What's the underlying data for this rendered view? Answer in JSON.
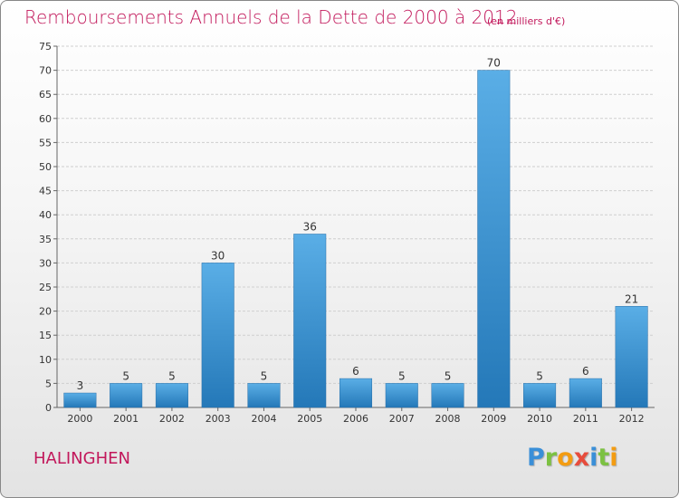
{
  "header": {
    "title": "Remboursements Annuels de la Dette de 2000 à 2012",
    "subtitle": "(en milliers d'€)"
  },
  "footer": {
    "commune": "HALINGHEN",
    "logo_letters": [
      "P",
      "r",
      "o",
      "x",
      "i",
      "t",
      "i"
    ]
  },
  "colors": {
    "title": "#c2185b",
    "bar_top": "#5aaee6",
    "bar_bottom": "#2478b8",
    "grid": "#cfcfcf",
    "logo": [
      "#3a8fd8",
      "#7cc142",
      "#f39c12",
      "#e74c3c",
      "#3a8fd8",
      "#7cc142",
      "#f39c12"
    ]
  },
  "chart_data": {
    "type": "bar",
    "categories": [
      "2000",
      "2001",
      "2002",
      "2003",
      "2004",
      "2005",
      "2006",
      "2007",
      "2008",
      "2009",
      "2010",
      "2011",
      "2012"
    ],
    "values": [
      3,
      5,
      5,
      30,
      5,
      36,
      6,
      5,
      5,
      70,
      5,
      6,
      21
    ],
    "ylim": [
      0,
      75
    ],
    "yticks": [
      0,
      5,
      10,
      15,
      20,
      25,
      30,
      35,
      40,
      45,
      50,
      55,
      60,
      65,
      70,
      75
    ],
    "grid": true,
    "legend": "none"
  }
}
